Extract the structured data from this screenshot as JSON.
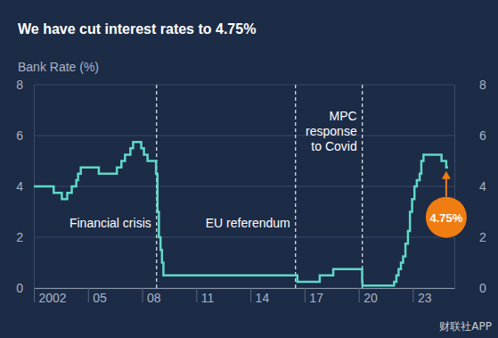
{
  "chart_data": {
    "type": "line",
    "title": "We have cut interest rates to 4.75%",
    "y_label": "Bank Rate (%)",
    "line_style": "step",
    "color": "#5fd8c8",
    "grid": true,
    "x": [
      2002.0,
      2003.1,
      2003.55,
      2003.85,
      2004.1,
      2004.35,
      2004.45,
      2004.6,
      2005.6,
      2006.6,
      2006.85,
      2007.05,
      2007.35,
      2007.5,
      2007.95,
      2008.1,
      2008.3,
      2008.77,
      2008.85,
      2008.93,
      2009.02,
      2009.1,
      2009.18,
      2016.6,
      2017.84,
      2018.59,
      2020.19,
      2020.21,
      2021.96,
      2022.09,
      2022.21,
      2022.34,
      2022.46,
      2022.59,
      2022.73,
      2022.84,
      2022.96,
      2023.09,
      2023.22,
      2023.38,
      2023.47,
      2023.59,
      2024.59,
      2024.85,
      2024.95
    ],
    "values": [
      4.0,
      3.75,
      3.5,
      3.75,
      4.0,
      4.25,
      4.5,
      4.75,
      4.5,
      4.75,
      5.0,
      5.25,
      5.5,
      5.75,
      5.5,
      5.25,
      5.0,
      4.5,
      3.0,
      2.0,
      1.5,
      1.0,
      0.5,
      0.25,
      0.5,
      0.75,
      0.25,
      0.1,
      0.25,
      0.5,
      0.75,
      1.0,
      1.25,
      1.75,
      2.25,
      3.0,
      3.5,
      4.0,
      4.25,
      4.5,
      5.0,
      5.25,
      5.0,
      4.75,
      4.75
    ],
    "xlim": [
      2002,
      2025.3
    ],
    "xticks": [
      2002,
      {
        "value": 2005,
        "label": "05"
      },
      {
        "value": 2008,
        "label": "08"
      },
      {
        "value": 2011,
        "label": "11"
      },
      {
        "value": 2014,
        "label": "14"
      },
      {
        "value": 2017,
        "label": "17"
      },
      {
        "value": 2020,
        "label": "20"
      },
      {
        "value": 2023,
        "label": "23"
      }
    ],
    "ylim": [
      0,
      8
    ],
    "yticks": [
      0,
      2,
      4,
      6,
      8
    ],
    "events": [
      {
        "label": [
          "Financial crisis"
        ],
        "x": 2008.8
      },
      {
        "label": [
          "EU referendum"
        ],
        "x": 2016.5
      },
      {
        "label": [
          "MPC",
          "response",
          "to Covid"
        ],
        "x": 2020.2
      }
    ],
    "annotation": {
      "text": "4.75%",
      "x": 2024.85,
      "y": 4.75
    },
    "watermark": "财联社APP"
  }
}
